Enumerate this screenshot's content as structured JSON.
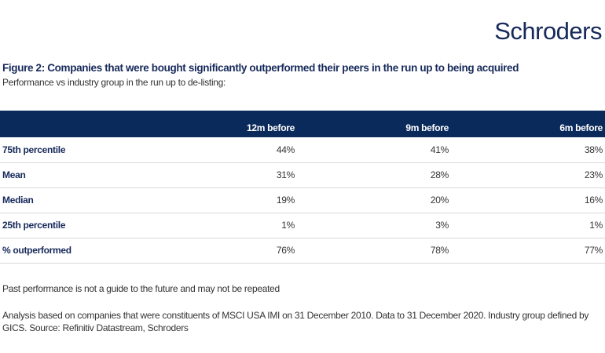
{
  "logo": "Schroders",
  "title": "Figure 2: Companies that were bought significantly outperformed their peers in the run up to being acquired",
  "subtitle": "Performance vs industry group in the run up to de-listing:",
  "chart_data": {
    "type": "table",
    "columns": [
      "",
      "12m before",
      "9m before",
      "6m before"
    ],
    "rows": [
      {
        "label": "75th percentile",
        "values": [
          "44%",
          "41%",
          "38%"
        ]
      },
      {
        "label": "Mean",
        "values": [
          "31%",
          "28%",
          "23%"
        ]
      },
      {
        "label": "Median",
        "values": [
          "19%",
          "20%",
          "16%"
        ]
      },
      {
        "label": "25th percentile",
        "values": [
          "1%",
          "3%",
          "1%"
        ]
      },
      {
        "label": "% outperformed",
        "values": [
          "76%",
          "78%",
          "77%"
        ]
      }
    ]
  },
  "notes": {
    "disclaimer": "Past performance is not a guide to the future and may not be repeated",
    "source": "Analysis based on companies that were constituents of MSCI USA IMI on 31 December 2010. Data to 31 December 2020. Industry group defined by GICS. Source: Refinitiv Datastream, Schroders"
  },
  "colors": {
    "navy": "#0b2a5c",
    "text_navy": "#16295a"
  }
}
